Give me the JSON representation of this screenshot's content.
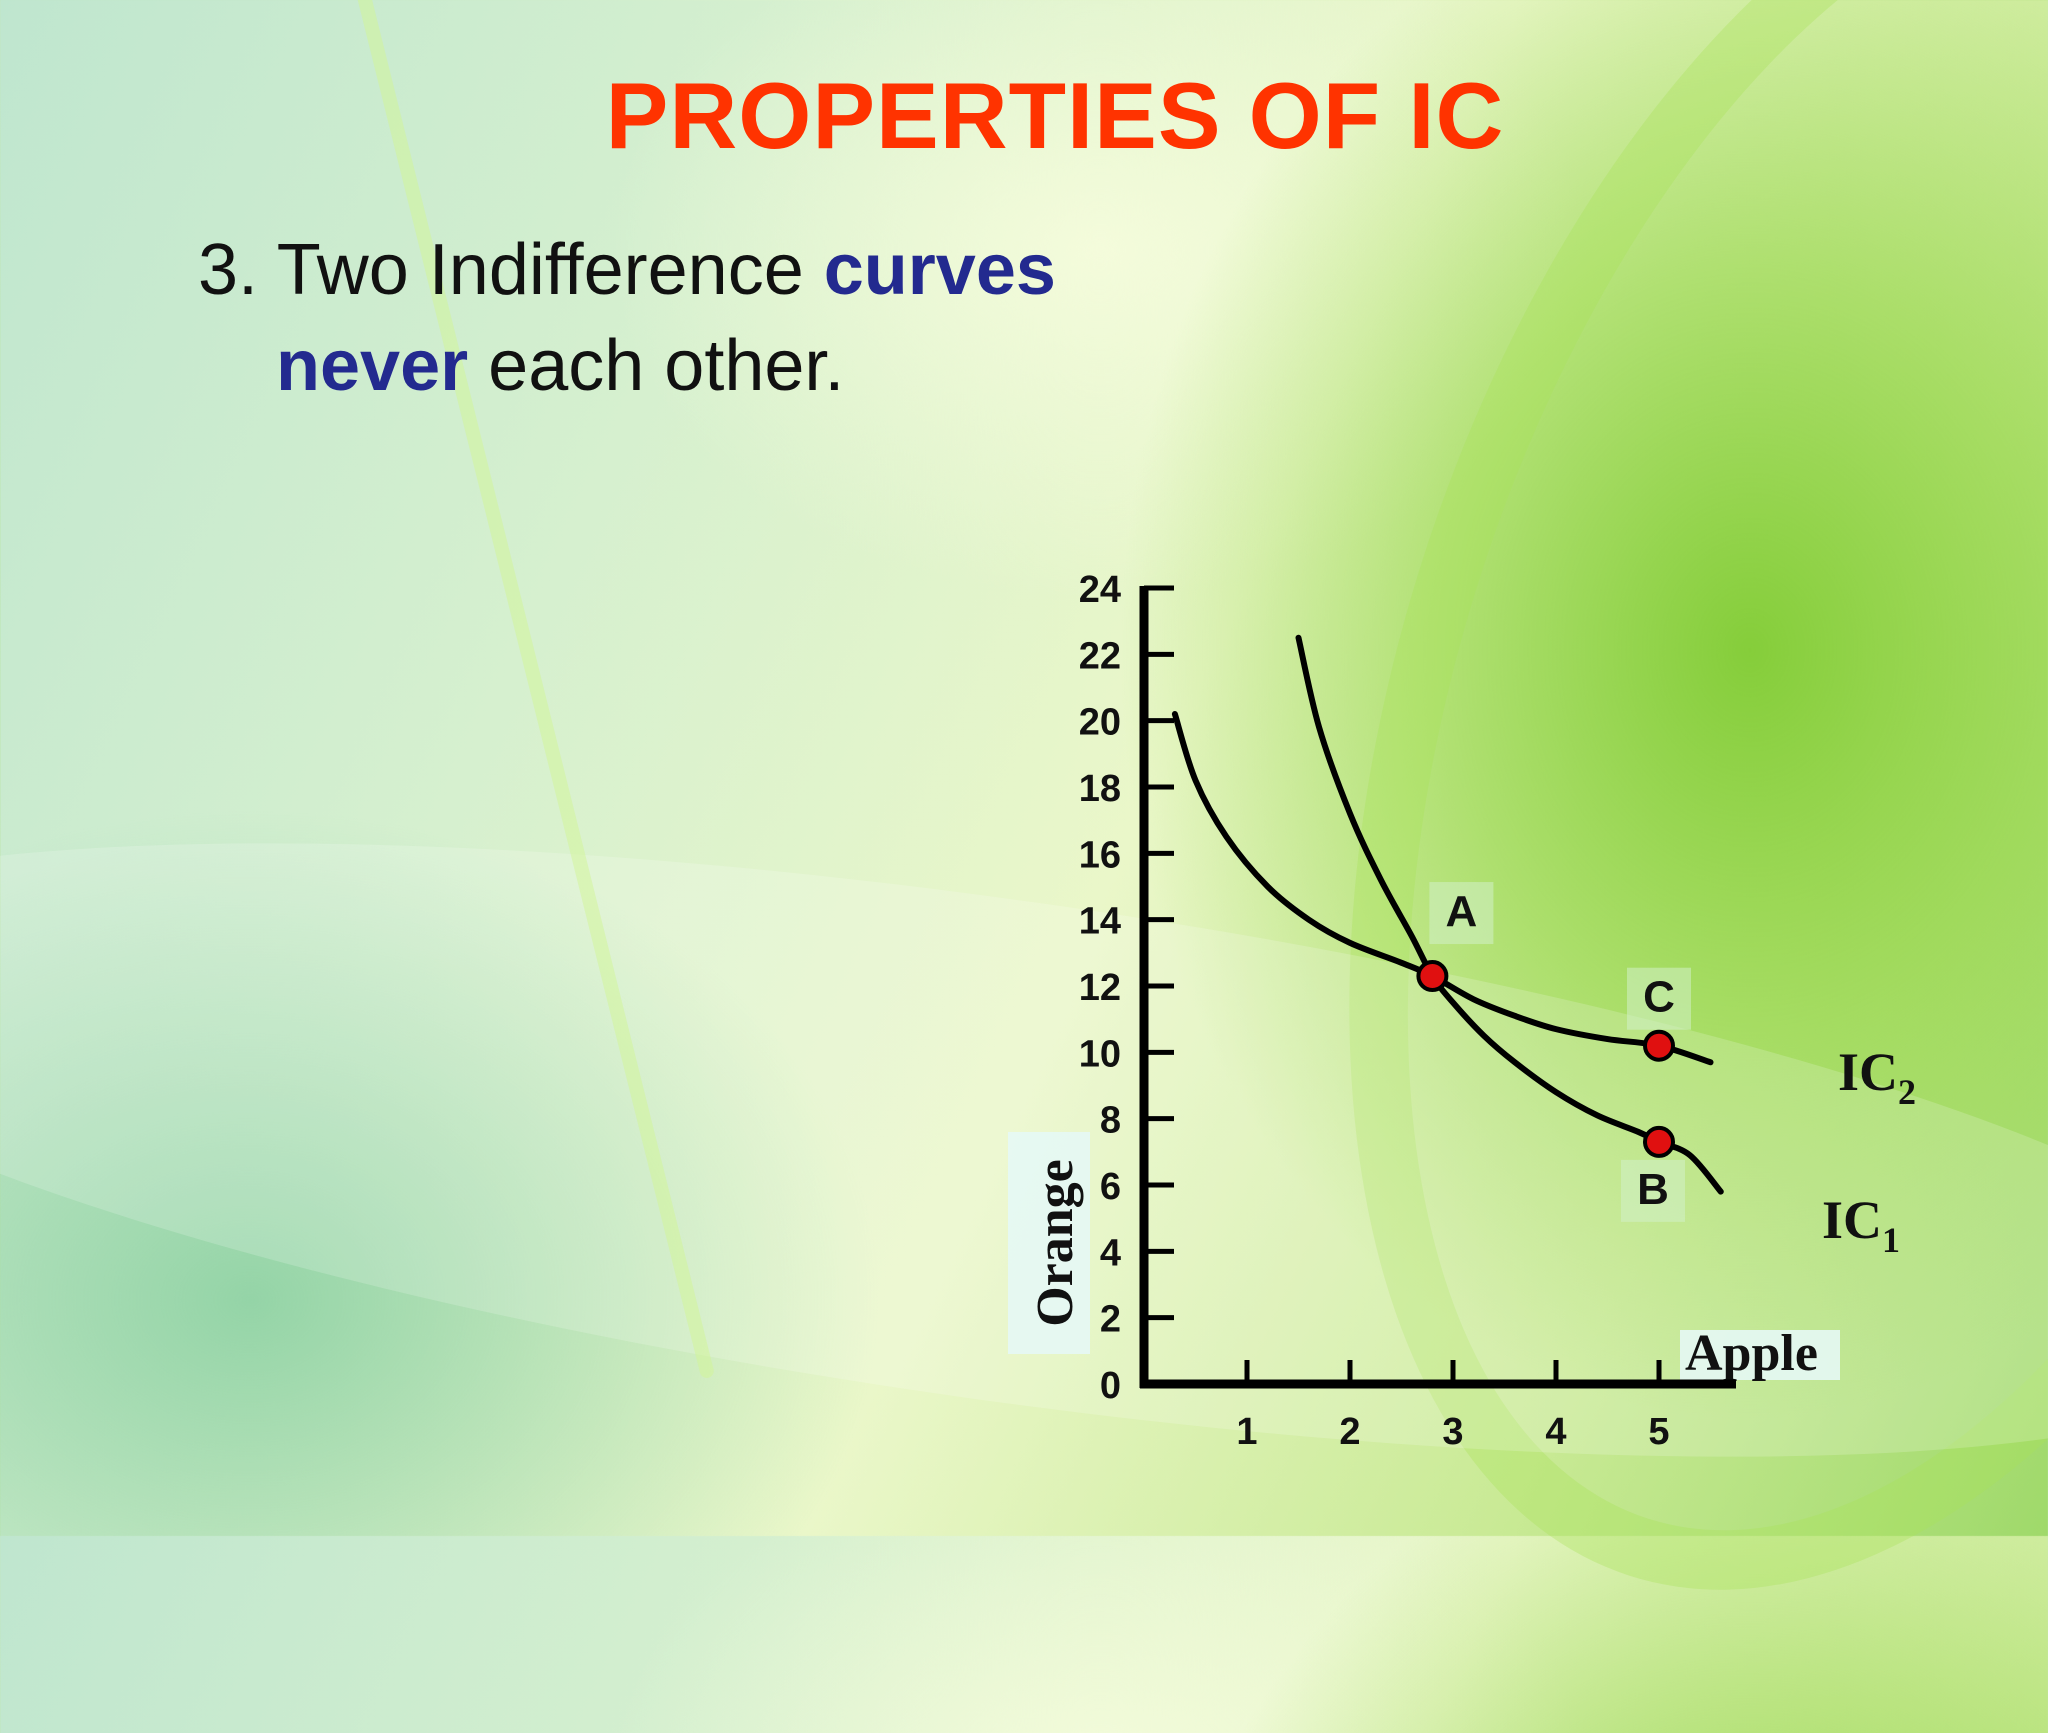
{
  "slide": {
    "title": "PROPERTIES OF IC",
    "point_number": "3.",
    "point_text_1": "Two Indifference",
    "point_highlight_1": "curves",
    "point_highlight_2": "never",
    "point_text_2": "each other."
  },
  "colors": {
    "title": "#ff3300",
    "highlight": "#232a8f",
    "point_fill": "#e01010"
  },
  "chart_data": {
    "type": "line",
    "xlabel": "Apple",
    "ylabel": "Orange",
    "x_ticks": [
      1,
      2,
      3,
      4,
      5
    ],
    "y_ticks": [
      0,
      2,
      4,
      6,
      8,
      10,
      12,
      14,
      16,
      18,
      20,
      22,
      24
    ],
    "xlim": [
      0,
      5.8
    ],
    "ylim": [
      0,
      24
    ],
    "series": [
      {
        "name": "IC2",
        "label_main": "IC",
        "label_sub": "2",
        "x": [
          0.3,
          0.5,
          0.8,
          1.2,
          1.6,
          2.0,
          2.5,
          2.8,
          3.2,
          3.6,
          4.0,
          4.5,
          5.0,
          5.5
        ],
        "y": [
          20.2,
          18.2,
          16.5,
          15.0,
          14.0,
          13.3,
          12.7,
          12.3,
          11.6,
          11.1,
          10.7,
          10.4,
          10.2,
          9.7
        ]
      },
      {
        "name": "IC1",
        "label_main": "IC",
        "label_sub": "1",
        "x": [
          1.5,
          1.7,
          2.0,
          2.3,
          2.6,
          2.8,
          3.0,
          3.3,
          3.6,
          4.0,
          4.4,
          4.8,
          5.0,
          5.3,
          5.6
        ],
        "y": [
          22.5,
          19.8,
          17.2,
          15.2,
          13.5,
          12.3,
          11.5,
          10.5,
          9.7,
          8.8,
          8.1,
          7.6,
          7.3,
          6.9,
          5.8
        ]
      }
    ],
    "points": [
      {
        "label": "A",
        "x": 2.8,
        "y": 12.3
      },
      {
        "label": "C",
        "x": 5.0,
        "y": 10.2
      },
      {
        "label": "B",
        "x": 5.0,
        "y": 7.3
      }
    ]
  }
}
